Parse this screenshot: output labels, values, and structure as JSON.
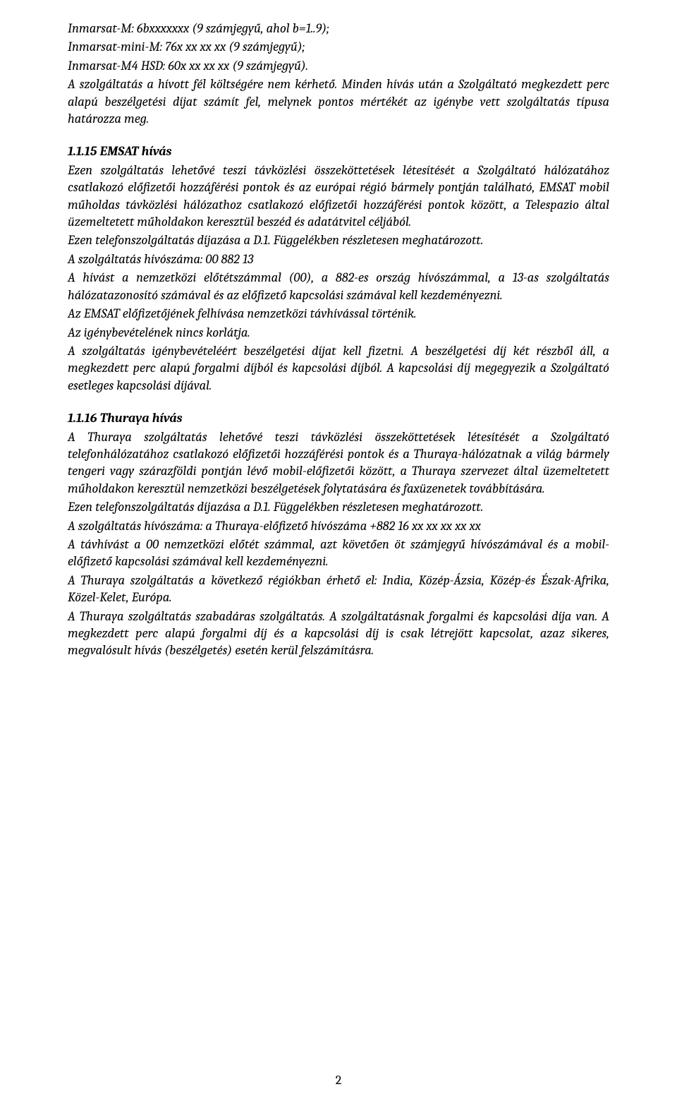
{
  "intro": {
    "p1": "Inmarsat-M: 6bxxxxxxx (9 számjegyű, ahol b=1..9);",
    "p2": "Inmarsat-mini-M: 76x xx xx xx (9 számjegyű);",
    "p3": "Inmarsat-M4 HSD: 60x xx xx xx (9 számjegyű).",
    "p4": "A szolgáltatás a hívott fél költségére nem kérhető. Minden hívás után a Szolgáltató megkezdett perc alapú beszélgetési díjat számít fel, melynek pontos mértékét az igénybe vett szolgáltatás típusa határozza meg."
  },
  "s15": {
    "title": "1.1.15 EMSAT hívás",
    "p1": "Ezen szolgáltatás lehetővé teszi távközlési összeköttetések létesítését a Szolgáltató hálózatához csatlakozó előfizetői hozzáférési pontok és az európai régió bármely pontján található, EMSAT mobil műholdas távközlési hálózathoz csatlakozó előfizetői hozzáférési pontok között, a Telespazio által üzemeltetett műholdakon keresztül beszéd és adatátvitel céljából.",
    "p2": "Ezen telefonszolgáltatás díjazása a D.1. Függelékben részletesen meghatározott.",
    "p3": "A szolgáltatás hívószáma: 00 882 13",
    "p4": "A hívást a nemzetközi előtétszámmal (00), a 882-es ország hívószámmal, a 13-as szolgáltatás hálózatazonosító számával és az előfizető kapcsolási számával kell kezdeményezni.",
    "p5": "Az EMSAT előfizetőjének felhívása nemzetközi távhívással történik.",
    "p6": "Az igénybevételének nincs korlátja.",
    "p7": "A szolgáltatás igénybevételéért beszélgetési díjat kell fizetni. A beszélgetési díj két részből áll, a megkezdett perc alapú forgalmi díjból és kapcsolási díjból. A kapcsolási díj megegyezik a Szolgáltató esetleges kapcsolási díjával."
  },
  "s16": {
    "title": "1.1.16 Thuraya hívás",
    "p1": "A Thuraya szolgáltatás lehetővé teszi távközlési összeköttetések létesítését a Szolgáltató telefonhálózatához csatlakozó előfizetői hozzáférési pontok és a Thuraya-hálózatnak a világ bármely tengeri vagy szárazföldi pontján lévő mobil-előfizetői között, a Thuraya szervezet által üzemeltetett műholdakon keresztül nemzetközi beszélgetések folytatására és faxüzenetek továbbítására.",
    "p2": "Ezen telefonszolgáltatás díjazása a D.1. Függelékben részletesen meghatározott.",
    "p3": "A szolgáltatás hívószáma: a Thuraya-előfizető hívószáma +882 16 xx xx xx xx xx",
    "p4": "A távhívást a 00 nemzetközi előtét számmal, azt követően öt számjegyű hívószámával és a mobil-előfizető kapcsolási számával kell kezdeményezni.",
    "p5": "A Thuraya szolgáltatás a következő régiókban érhető el: India, Közép-Ázsia, Közép-és Észak-Afrika, Közel-Kelet, Európa.",
    "p6": "A Thuraya szolgáltatás szabadáras szolgáltatás. A szolgáltatásnak forgalmi és kapcsolási díja van. A megkezdett perc alapú forgalmi díj és a kapcsolási díj is csak létrejött kapcsolat, azaz sikeres, megvalósult hívás (beszélgetés) esetén kerül felszámításra."
  },
  "page": "2"
}
